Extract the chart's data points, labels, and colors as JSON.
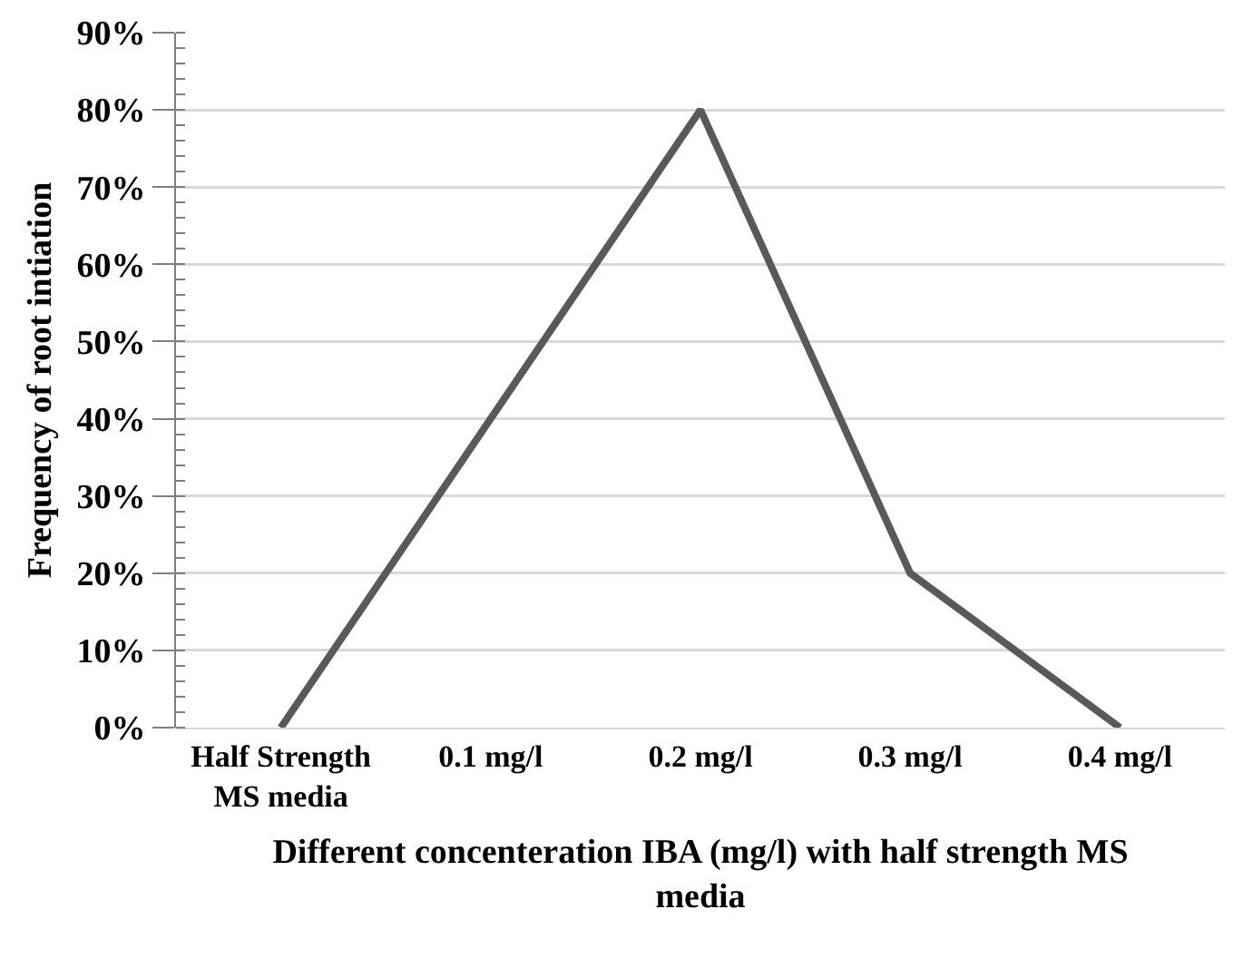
{
  "chart_data": {
    "type": "line",
    "xlabel": "Different concenteration IBA (mg/l) with half strength MS media",
    "ylabel": "Frequency of root intiation",
    "categories": [
      "Half Strength MS media",
      "0.1 mg/l",
      "0.2 mg/l",
      "0.3 mg/l",
      "0.4 mg/l"
    ],
    "series": [
      {
        "color": "#595959",
        "values": [
          0,
          40,
          80,
          20,
          0
        ]
      }
    ],
    "ylim": [
      0,
      90
    ],
    "yticks": [
      {
        "value": 0,
        "label": "0%"
      },
      {
        "value": 10,
        "label": "10%"
      },
      {
        "value": 20,
        "label": "20%"
      },
      {
        "value": 30,
        "label": "30%"
      },
      {
        "value": 40,
        "label": "40%"
      },
      {
        "value": 50,
        "label": "50%"
      },
      {
        "value": 60,
        "label": "60%"
      },
      {
        "value": 70,
        "label": "70%"
      },
      {
        "value": 80,
        "label": "80%"
      },
      {
        "value": 90,
        "label": "90%"
      }
    ],
    "grid": "y",
    "legend": false,
    "marker": "none",
    "line_style": "solid"
  }
}
